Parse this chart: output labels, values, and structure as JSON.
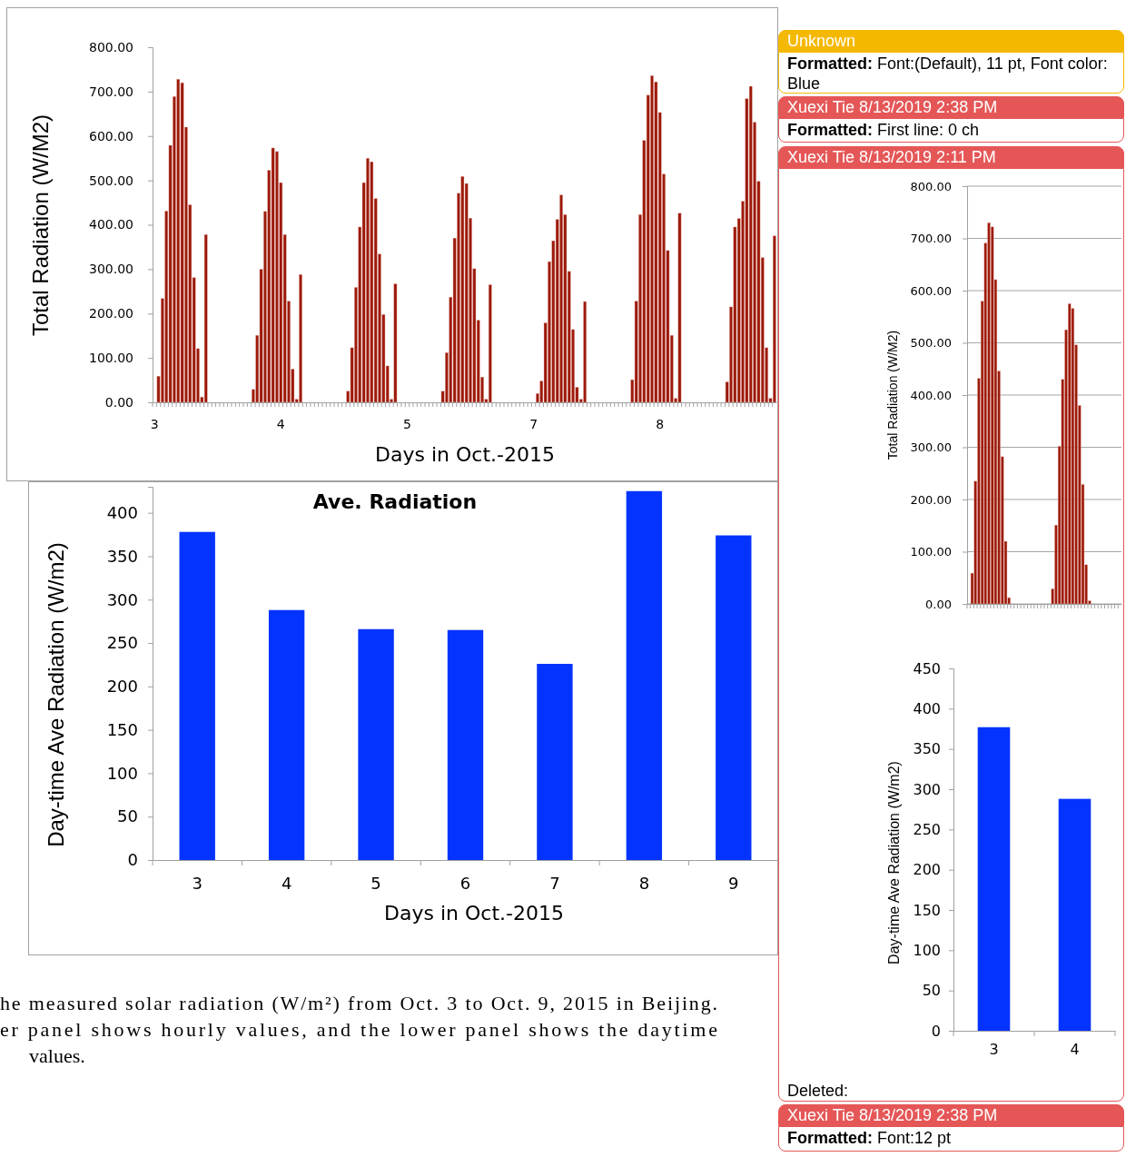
{
  "chart_data": [
    {
      "type": "bar",
      "xlabel": "Days in Oct.-2015",
      "ylabel": "Total Radiation (W/M2)",
      "color": "#9c1a0a",
      "grid": false,
      "categories": [
        "3",
        null,
        null,
        null,
        null,
        null,
        null,
        null,
        null,
        null,
        null,
        null,
        null,
        null,
        null,
        null,
        null,
        null,
        null,
        null,
        null,
        null,
        null,
        null,
        null,
        null,
        null,
        null,
        null,
        null,
        null,
        null,
        "4",
        null,
        null,
        null,
        null,
        null,
        null,
        null,
        null,
        null,
        null,
        null,
        null,
        null,
        null,
        null,
        null,
        null,
        null,
        null,
        null,
        null,
        null,
        null,
        null,
        null,
        null,
        null,
        null,
        null,
        null,
        null,
        "5",
        null,
        null,
        null,
        null,
        null,
        null,
        null,
        null,
        null,
        null,
        null,
        null,
        null,
        null,
        null,
        null,
        null,
        null,
        null,
        null,
        null,
        null,
        null,
        null,
        null,
        null,
        null,
        null,
        null,
        null,
        null,
        "7",
        null,
        null,
        null,
        null,
        null,
        null,
        null,
        null,
        null,
        null,
        null,
        null,
        null,
        null,
        null,
        null,
        null,
        null,
        null,
        null,
        null,
        null,
        null,
        null,
        null,
        null,
        null,
        null,
        null,
        null,
        null,
        "8",
        null,
        null,
        null,
        null,
        null,
        null,
        null,
        null,
        null,
        null,
        null,
        null,
        null,
        null,
        null,
        null,
        null,
        null,
        null,
        null,
        null,
        null,
        null,
        null,
        null,
        null,
        null,
        null,
        null
      ],
      "values": [
        null,
        59,
        234,
        431,
        579,
        689,
        728,
        720,
        620,
        445,
        281,
        121,
        12,
        378,
        null,
        null,
        null,
        null,
        null,
        null,
        null,
        null,
        null,
        null,
        null,
        29,
        151,
        300,
        430,
        523,
        573,
        565,
        495,
        378,
        228,
        75,
        7,
        288,
        null,
        null,
        null,
        null,
        null,
        null,
        null,
        null,
        null,
        null,
        null,
        25,
        123,
        259,
        395,
        495,
        550,
        542,
        459,
        334,
        198,
        82,
        7,
        267,
        null,
        null,
        null,
        null,
        null,
        null,
        null,
        null,
        null,
        null,
        null,
        25,
        112,
        237,
        370,
        471,
        509,
        493,
        415,
        301,
        185,
        57,
        7,
        265,
        null,
        null,
        null,
        null,
        null,
        null,
        null,
        null,
        null,
        null,
        null,
        20,
        48,
        179,
        317,
        364,
        412,
        467,
        423,
        295,
        164,
        34,
        7,
        227,
        null,
        null,
        null,
        null,
        null,
        null,
        null,
        null,
        null,
        null,
        null,
        51,
        228,
        423,
        590,
        692,
        736,
        722,
        653,
        514,
        342,
        151,
        9,
        426,
        null,
        null,
        null,
        null,
        null,
        null,
        null,
        null,
        null,
        null,
        null,
        46,
        215,
        395,
        414,
        453,
        684,
        712,
        631,
        498,
        326,
        123,
        9,
        375
      ],
      "ylim": [
        0,
        800
      ],
      "yticks": [
        {
          "value": 0,
          "label": "0.00"
        },
        {
          "value": 100,
          "label": "100.00"
        },
        {
          "value": 200,
          "label": "200.00"
        },
        {
          "value": 300,
          "label": "300.00"
        },
        {
          "value": 400,
          "label": "400.00"
        },
        {
          "value": 500,
          "label": "500.00"
        },
        {
          "value": 600,
          "label": "600.00"
        },
        {
          "value": 700,
          "label": "700.00"
        },
        {
          "value": 800,
          "label": "800.00"
        }
      ]
    },
    {
      "type": "bar",
      "title": "Ave. Radiation",
      "xlabel": "Days in Oct.-2015",
      "ylabel": "Day-time Ave Radiation (W/m2)",
      "color": "#0433ff",
      "grid": false,
      "categories": [
        "3",
        "4",
        "5",
        "6",
        "7",
        "8",
        "9"
      ],
      "values": [
        378,
        288,
        266,
        265,
        226,
        425,
        374
      ],
      "ylim": [
        0,
        430
      ],
      "yticks": [
        0,
        50,
        100,
        150,
        200,
        250,
        300,
        350,
        400
      ],
      "annotations": [
        "he measured solar radiation (W/m²) from Oct. 3 to Oct. 9, 2015 in Beijing.",
        "er panel shows hourly values, and the lower panel shows the daytime",
        "values."
      ]
    },
    {
      "type": "other",
      "annotations": [
        "Unknown",
        "Formatted: Font:(Default), 11 pt, Font color: Blue",
        "Xuexi Tie 8/13/2019 2:38 PM",
        "Formatted: First line:  0 ch",
        "Xuexi Tie 8/13/2019 2:11 PM",
        "Deleted:",
        "Xuexi Tie 8/13/2019 2:38 PM",
        "Formatted: Font:12 pt"
      ]
    },
    {
      "type": "bar",
      "ylabel": "Total Radiation (W/M2)",
      "color": "#9c1a0a",
      "grid": "y",
      "tick_labels": "y",
      "categories": [
        null,
        null,
        null,
        null,
        null,
        null,
        null,
        null,
        null,
        null,
        null,
        null,
        null,
        null,
        null,
        null,
        null,
        null,
        null,
        null,
        null,
        null,
        null,
        null,
        null,
        null,
        null,
        null,
        null,
        null,
        null,
        null,
        null,
        null,
        null,
        null,
        null,
        null,
        null,
        null,
        null,
        null,
        null,
        null,
        null,
        null
      ],
      "values": [
        null,
        59,
        235,
        432,
        580,
        691,
        730,
        722,
        621,
        446,
        282,
        120,
        12,
        null,
        null,
        null,
        null,
        null,
        null,
        null,
        null,
        null,
        null,
        null,
        null,
        29,
        151,
        302,
        430,
        525,
        575,
        566,
        496,
        380,
        229,
        75,
        6,
        null,
        null,
        null,
        null,
        null,
        null,
        null,
        null,
        null
      ],
      "ylim": [
        0,
        800
      ],
      "yticks": [
        {
          "value": 0,
          "label": "0.00"
        },
        {
          "value": 100,
          "label": "100.00"
        },
        {
          "value": 200,
          "label": "200.00"
        },
        {
          "value": 300,
          "label": "300.00"
        },
        {
          "value": 400,
          "label": "400.00"
        },
        {
          "value": 500,
          "label": "500.00"
        },
        {
          "value": 600,
          "label": "600.00"
        },
        {
          "value": 700,
          "label": "700.00"
        },
        {
          "value": 800,
          "label": "800.00"
        }
      ]
    },
    {
      "type": "bar",
      "ylabel": "Day-time Ave Radiation (W/m2)",
      "color": "#0433ff",
      "grid": false,
      "categories": [
        "3",
        "4"
      ],
      "values": [
        377,
        288
      ],
      "ylim": [
        0,
        450
      ],
      "yticks": [
        0,
        50,
        100,
        150,
        200,
        250,
        300,
        350,
        400,
        450
      ]
    }
  ]
}
